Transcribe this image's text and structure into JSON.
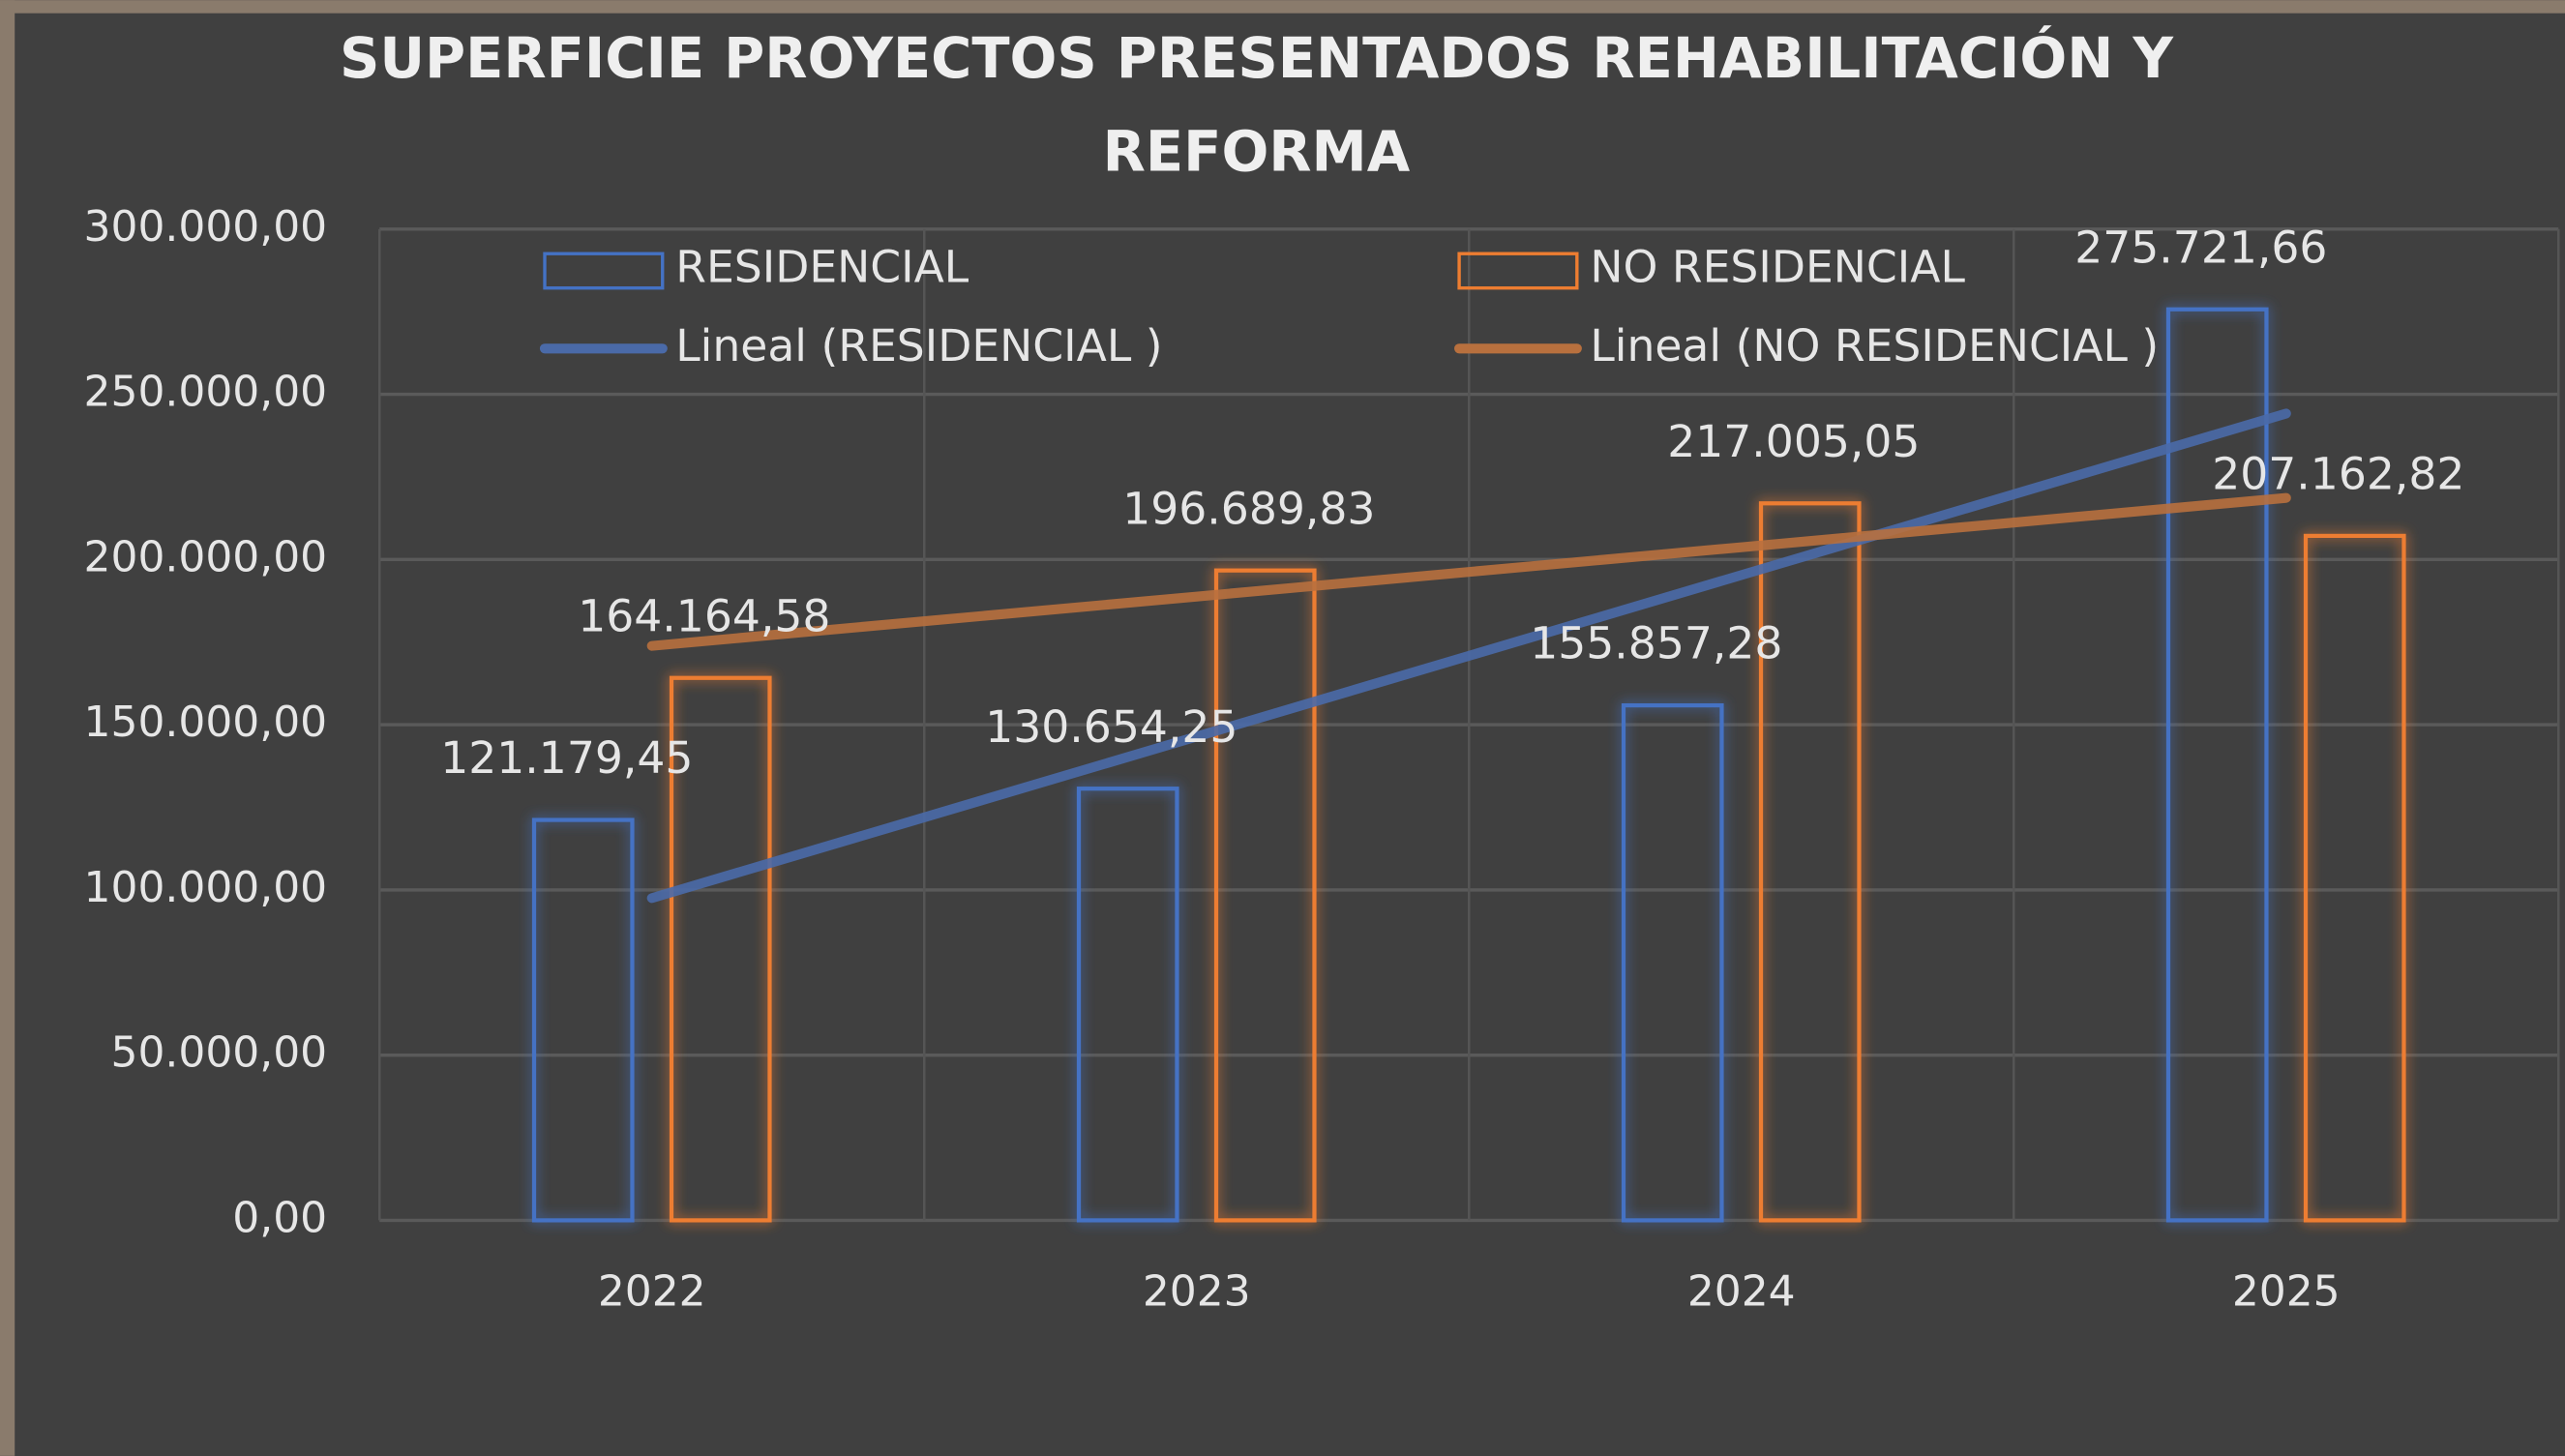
{
  "chart_data": {
    "type": "bar",
    "title": [
      "SUPERFICIE PROYECTOS PRESENTADOS REHABILITACIÓN Y",
      "REFORMA"
    ],
    "categories": [
      "2022",
      "2023",
      "2024",
      "2025"
    ],
    "series": [
      {
        "name": "RESIDENCIAL",
        "color": "#4472c4",
        "values": [
          121179.45,
          130654.25,
          155857.28,
          275721.66
        ],
        "value_labels": [
          "121.179,45",
          "130.654,25",
          "155.857,28",
          "275.721,66"
        ]
      },
      {
        "name": "NO RESIDENCIAL",
        "color": "#ed7d31",
        "values": [
          164164.58,
          196689.83,
          217005.05,
          207162.82
        ],
        "value_labels": [
          "164.164,58",
          "196.689,83",
          "217.005,05",
          "207.162,82"
        ]
      }
    ],
    "trendlines": [
      {
        "name": "Lineal (RESIDENCIAL )",
        "color": "#4a6aa8",
        "values": [
          97529,
          146412,
          195295,
          244178
        ]
      },
      {
        "name": "Lineal (NO RESIDENCIAL )",
        "color": "#b8703e",
        "values": [
          173859,
          188790,
          203721,
          218652
        ]
      }
    ],
    "ylim": [
      0,
      300000
    ],
    "yticks": [
      {
        "value": 0,
        "label": "0,00"
      },
      {
        "value": 50000,
        "label": "50.000,00"
      },
      {
        "value": 100000,
        "label": "100.000,00"
      },
      {
        "value": 150000,
        "label": "150.000,00"
      },
      {
        "value": 200000,
        "label": "200.000,00"
      },
      {
        "value": 250000,
        "label": "250.000,00"
      },
      {
        "value": 300000,
        "label": "300.000,00"
      }
    ],
    "grid": true
  }
}
